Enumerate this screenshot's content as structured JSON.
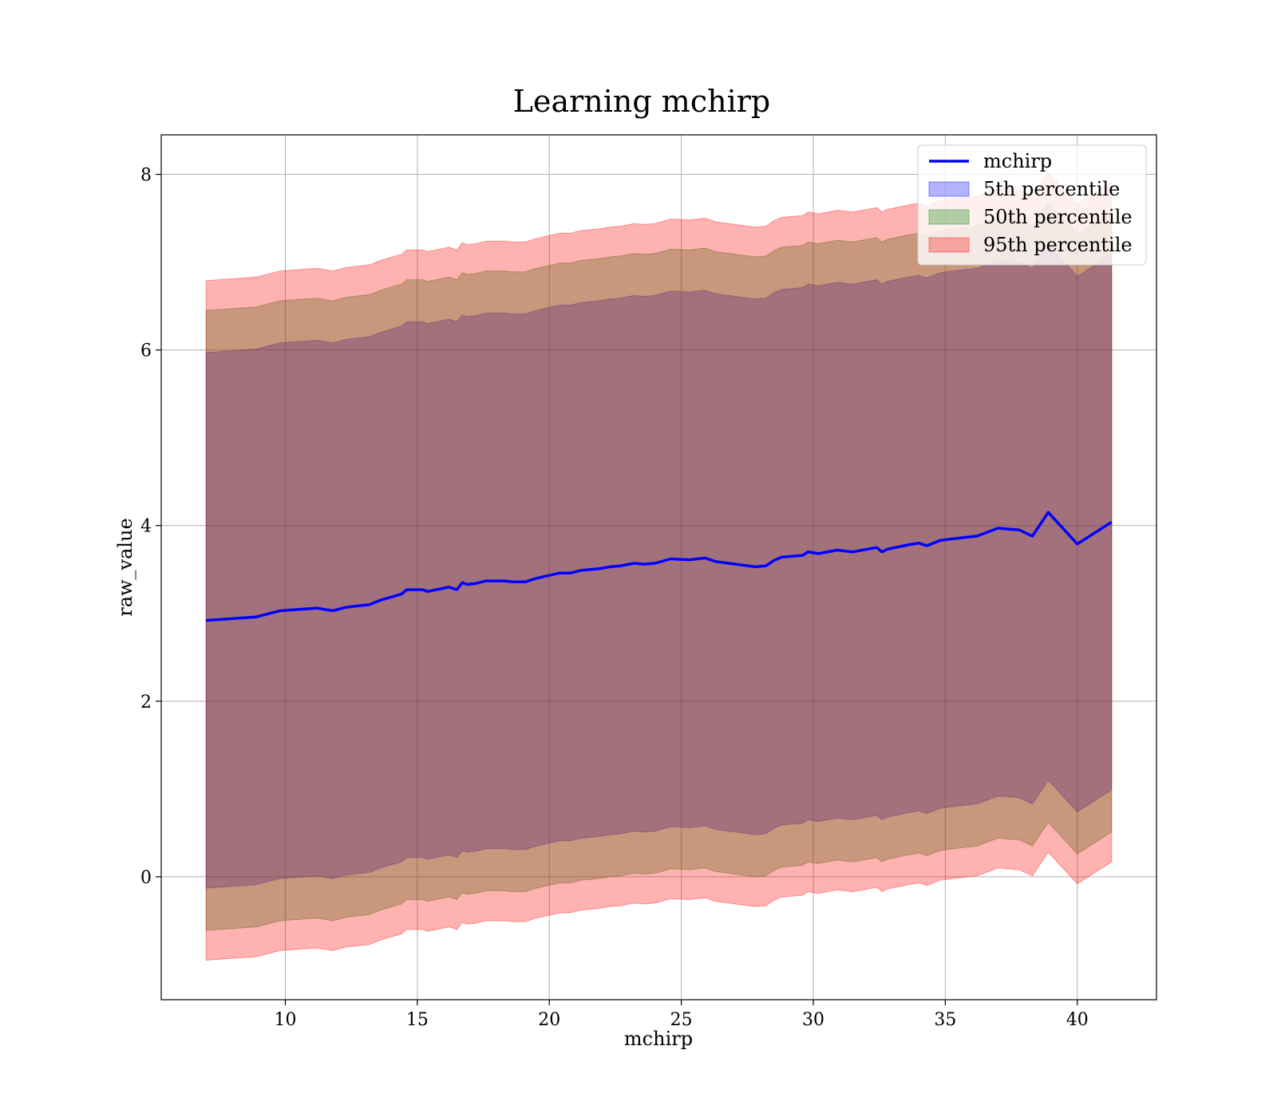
{
  "chart_data": {
    "type": "area",
    "title": "Learning mchirp",
    "xlabel": "mchirp",
    "ylabel": "raw_value",
    "xlim": [
      5.3,
      43.0
    ],
    "ylim": [
      -1.4,
      8.45
    ],
    "xticks": [
      10,
      15,
      20,
      25,
      30,
      35,
      40
    ],
    "yticks": [
      0,
      2,
      4,
      6,
      8
    ],
    "grid": true,
    "legend_position": "top-right",
    "x": [
      7.0,
      8.9,
      9.8,
      11.2,
      11.8,
      12.3,
      13.2,
      13.6,
      14.4,
      14.6,
      15.2,
      15.4,
      16.2,
      16.5,
      16.7,
      16.9,
      17.2,
      17.6,
      18.3,
      18.6,
      19.1,
      19.4,
      19.8,
      20.4,
      20.8,
      21.2,
      21.9,
      22.3,
      22.7,
      23.2,
      23.6,
      24.0,
      24.6,
      25.3,
      25.9,
      26.3,
      26.8,
      27.3,
      27.8,
      28.2,
      28.5,
      28.8,
      29.6,
      29.8,
      30.2,
      30.9,
      31.5,
      32.4,
      32.6,
      32.8,
      33.6,
      34.0,
      34.3,
      34.8,
      35.3,
      36.2,
      37.0,
      37.8,
      38.3,
      38.9,
      40.0,
      41.3
    ],
    "series": [
      {
        "name": "mchirp",
        "role": "line",
        "color": "#0000ff",
        "values": [
          2.92,
          2.96,
          3.03,
          3.06,
          3.03,
          3.07,
          3.1,
          3.15,
          3.22,
          3.27,
          3.27,
          3.25,
          3.3,
          3.27,
          3.35,
          3.33,
          3.34,
          3.37,
          3.37,
          3.36,
          3.36,
          3.39,
          3.42,
          3.46,
          3.46,
          3.49,
          3.51,
          3.53,
          3.54,
          3.57,
          3.56,
          3.57,
          3.62,
          3.61,
          3.63,
          3.59,
          3.57,
          3.55,
          3.53,
          3.54,
          3.6,
          3.64,
          3.66,
          3.7,
          3.68,
          3.72,
          3.7,
          3.75,
          3.7,
          3.73,
          3.78,
          3.8,
          3.77,
          3.83,
          3.85,
          3.88,
          3.97,
          3.95,
          3.88,
          4.15,
          3.79,
          4.04
        ]
      },
      {
        "name": "5th percentile",
        "role": "band",
        "color": "#0000ff",
        "opacity": 0.3,
        "width": [
          3.05,
          3.05,
          3.05,
          3.05,
          3.05,
          3.05,
          3.05,
          3.05,
          3.05,
          3.05,
          3.05,
          3.05,
          3.05,
          3.05,
          3.05,
          3.05,
          3.05,
          3.05,
          3.05,
          3.05,
          3.05,
          3.05,
          3.05,
          3.05,
          3.05,
          3.05,
          3.05,
          3.05,
          3.05,
          3.05,
          3.05,
          3.05,
          3.05,
          3.05,
          3.05,
          3.05,
          3.05,
          3.05,
          3.05,
          3.05,
          3.05,
          3.05,
          3.05,
          3.05,
          3.05,
          3.05,
          3.05,
          3.05,
          3.05,
          3.05,
          3.05,
          3.05,
          3.05,
          3.05,
          3.05,
          3.05,
          3.05,
          3.05,
          3.05,
          3.05,
          3.05,
          3.05
        ]
      },
      {
        "name": "50th percentile",
        "role": "band",
        "color": "#008000",
        "opacity": 0.3,
        "width": [
          3.53,
          3.53,
          3.53,
          3.53,
          3.53,
          3.53,
          3.53,
          3.53,
          3.53,
          3.53,
          3.53,
          3.53,
          3.53,
          3.53,
          3.53,
          3.53,
          3.53,
          3.53,
          3.53,
          3.53,
          3.53,
          3.53,
          3.53,
          3.53,
          3.53,
          3.53,
          3.53,
          3.53,
          3.53,
          3.53,
          3.53,
          3.53,
          3.53,
          3.53,
          3.53,
          3.53,
          3.53,
          3.53,
          3.53,
          3.53,
          3.53,
          3.53,
          3.53,
          3.53,
          3.53,
          3.53,
          3.53,
          3.53,
          3.53,
          3.53,
          3.53,
          3.53,
          3.53,
          3.53,
          3.53,
          3.53,
          3.53,
          3.53,
          3.53,
          3.53,
          3.53,
          3.53
        ]
      },
      {
        "name": "95th percentile",
        "role": "band",
        "color": "#ff0000",
        "opacity": 0.3,
        "width": [
          3.87,
          3.87,
          3.87,
          3.87,
          3.87,
          3.87,
          3.87,
          3.87,
          3.87,
          3.87,
          3.87,
          3.87,
          3.87,
          3.87,
          3.87,
          3.87,
          3.87,
          3.87,
          3.87,
          3.87,
          3.87,
          3.87,
          3.87,
          3.87,
          3.87,
          3.87,
          3.87,
          3.87,
          3.87,
          3.87,
          3.87,
          3.87,
          3.87,
          3.87,
          3.87,
          3.87,
          3.87,
          3.87,
          3.87,
          3.87,
          3.87,
          3.87,
          3.87,
          3.87,
          3.87,
          3.87,
          3.87,
          3.87,
          3.87,
          3.87,
          3.87,
          3.87,
          3.87,
          3.87,
          3.87,
          3.87,
          3.87,
          3.87,
          3.87,
          3.87,
          3.87,
          3.87
        ]
      }
    ]
  }
}
